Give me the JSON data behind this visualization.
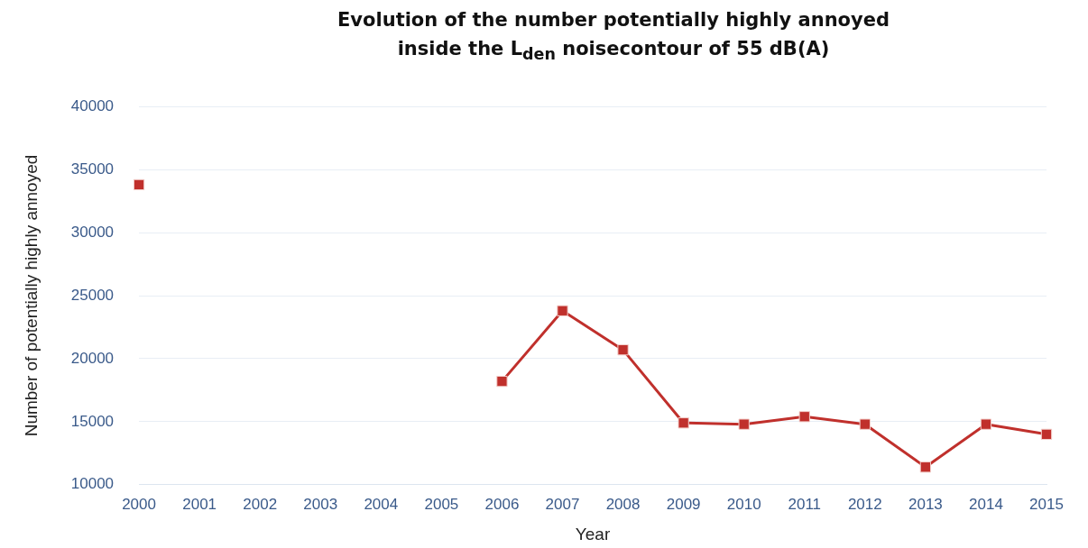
{
  "chart_data": {
    "type": "line",
    "title": "Evolution of the number potentially highly annoyed\ninside the L$_{den}$ noisecontour of 55 dB(A)",
    "xlabel": "Year",
    "ylabel": "Number of potentially highly annoyed",
    "categories": [
      "2000",
      "2001",
      "2002",
      "2003",
      "2004",
      "2005",
      "2006",
      "2007",
      "2008",
      "2009",
      "2010",
      "2011",
      "2012",
      "2013",
      "2014",
      "2015"
    ],
    "series": [
      {
        "color": "#c0302c",
        "values": [
          33800,
          null,
          null,
          null,
          null,
          null,
          18200,
          23800,
          20700,
          14900,
          14800,
          15400,
          14800,
          11400,
          14800,
          14000
        ]
      }
    ],
    "ylim": [
      10000,
      40000
    ],
    "yticks": [
      10000,
      15000,
      20000,
      25000,
      30000,
      35000,
      40000
    ],
    "grid": "y",
    "legend": false,
    "marker": "square",
    "line_style": "solid"
  }
}
